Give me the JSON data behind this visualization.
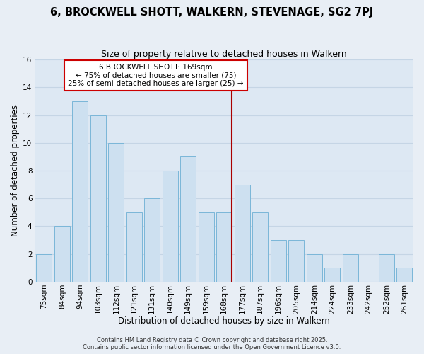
{
  "title": "6, BROCKWELL SHOTT, WALKERN, STEVENAGE, SG2 7PJ",
  "subtitle": "Size of property relative to detached houses in Walkern",
  "xlabel": "Distribution of detached houses by size in Walkern",
  "ylabel": "Number of detached properties",
  "bar_labels": [
    "75sqm",
    "84sqm",
    "94sqm",
    "103sqm",
    "112sqm",
    "121sqm",
    "131sqm",
    "140sqm",
    "149sqm",
    "159sqm",
    "168sqm",
    "177sqm",
    "187sqm",
    "196sqm",
    "205sqm",
    "214sqm",
    "224sqm",
    "233sqm",
    "242sqm",
    "252sqm",
    "261sqm"
  ],
  "bar_values": [
    2,
    4,
    13,
    12,
    10,
    5,
    6,
    8,
    9,
    5,
    5,
    7,
    5,
    3,
    3,
    2,
    1,
    2,
    0,
    2,
    1
  ],
  "bar_color": "#cde0f0",
  "bar_edge_color": "#7ab6d8",
  "ylim": [
    0,
    16
  ],
  "yticks": [
    0,
    2,
    4,
    6,
    8,
    10,
    12,
    14,
    16
  ],
  "annotation_text": "6 BROCKWELL SHOTT: 169sqm\n← 75% of detached houses are smaller (75)\n25% of semi-detached houses are larger (25) →",
  "annotation_box_color": "#ffffff",
  "annotation_box_edge_color": "#cc0000",
  "background_color": "#e8eef5",
  "plot_bg_color": "#dde8f3",
  "grid_color": "#c5d5e5",
  "footer_line1": "Contains HM Land Registry data © Crown copyright and database right 2025.",
  "footer_line2": "Contains public sector information licensed under the Open Government Licence v3.0.",
  "title_fontsize": 10.5,
  "subtitle_fontsize": 9,
  "axis_label_fontsize": 8.5,
  "tick_fontsize": 7.5,
  "annotation_fontsize": 7.5,
  "footer_fontsize": 6
}
